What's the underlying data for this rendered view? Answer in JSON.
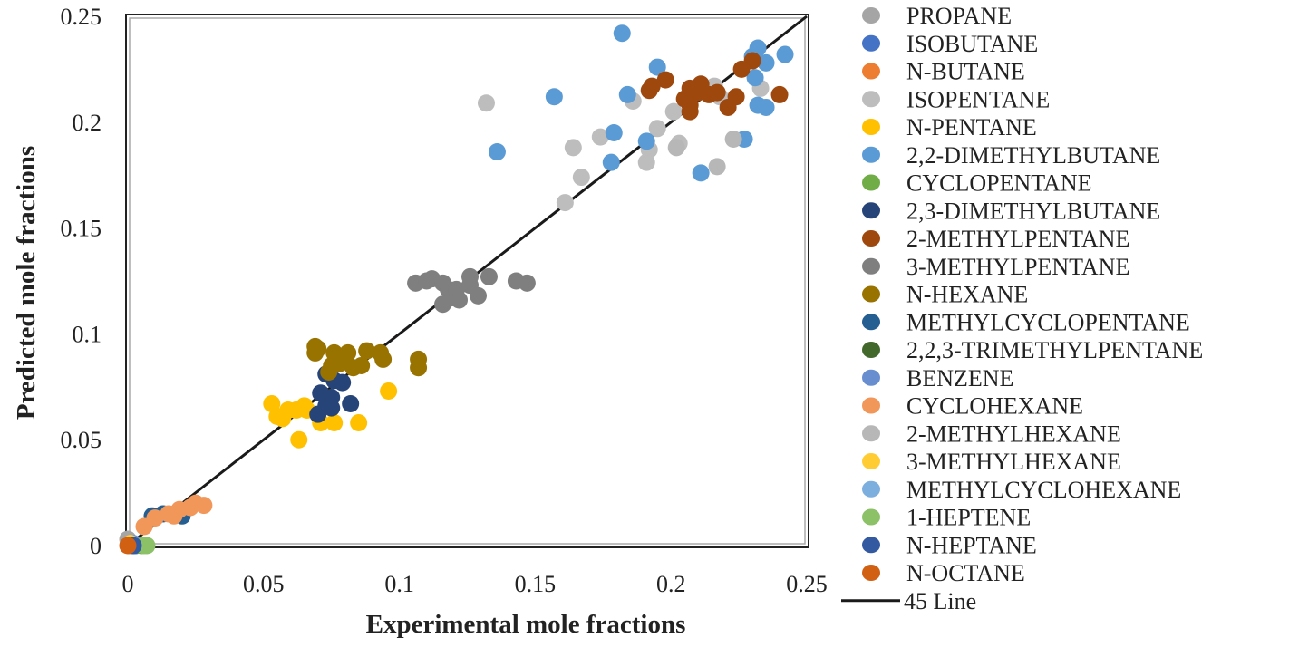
{
  "chart_data": {
    "type": "scatter",
    "xlabel": "Experimental mole fractions",
    "ylabel": "Predicted mole fractions",
    "xlim": [
      0,
      0.25
    ],
    "ylim": [
      0,
      0.25
    ],
    "xticks": [
      "0",
      "0.05",
      "0.1",
      "0.15",
      "0.2",
      "0.25"
    ],
    "yticks": [
      "0",
      "0.05",
      "0.1",
      "0.15",
      "0.2",
      "0.25"
    ],
    "xtick_values": [
      0,
      0.05,
      0.1,
      0.15,
      0.2,
      0.25
    ],
    "ytick_values": [
      0,
      0.05,
      0.1,
      0.15,
      0.2,
      0.25
    ],
    "grid": false,
    "legend_position": "right",
    "reference_line": {
      "name": "45 Line",
      "from": [
        0,
        0
      ],
      "to": [
        0.25,
        0.25
      ],
      "color": "#1a1a1a"
    },
    "series": [
      {
        "name": "PROPANE",
        "color": "#A5A5A5",
        "points": [
          [
            0.0,
            0.003
          ]
        ]
      },
      {
        "name": "ISOBUTANE",
        "color": "#4472C4",
        "points": [
          [
            0.003,
            0.0
          ]
        ]
      },
      {
        "name": "N-BUTANE",
        "color": "#ED7D31",
        "points": [
          [
            0.001,
            0.0
          ]
        ]
      },
      {
        "name": "ISOPENTANE",
        "color": "#BDBDBD",
        "points": [
          [
            0.132,
            0.209
          ],
          [
            0.164,
            0.188
          ],
          [
            0.174,
            0.193
          ],
          [
            0.167,
            0.174
          ],
          [
            0.161,
            0.162
          ],
          [
            0.186,
            0.21
          ],
          [
            0.195,
            0.197
          ],
          [
            0.192,
            0.187
          ],
          [
            0.191,
            0.181
          ],
          [
            0.203,
            0.19
          ],
          [
            0.201,
            0.205
          ],
          [
            0.216,
            0.217
          ],
          [
            0.218,
            0.212
          ],
          [
            0.233,
            0.216
          ]
        ]
      },
      {
        "name": "N-PENTANE",
        "color": "#FFC000",
        "points": [
          [
            0.053,
            0.067
          ],
          [
            0.055,
            0.061
          ],
          [
            0.059,
            0.064
          ],
          [
            0.062,
            0.064
          ],
          [
            0.065,
            0.066
          ],
          [
            0.066,
            0.064
          ],
          [
            0.063,
            0.05
          ],
          [
            0.071,
            0.058
          ],
          [
            0.076,
            0.058
          ],
          [
            0.085,
            0.058
          ],
          [
            0.096,
            0.073
          ],
          [
            0.057,
            0.06
          ]
        ]
      },
      {
        "name": "2,2-DIMETHYLBUTANE",
        "color": "#5B9BD5",
        "points": [
          [
            0.182,
            0.242
          ],
          [
            0.157,
            0.212
          ],
          [
            0.136,
            0.186
          ],
          [
            0.195,
            0.226
          ],
          [
            0.184,
            0.213
          ],
          [
            0.179,
            0.195
          ],
          [
            0.178,
            0.181
          ],
          [
            0.191,
            0.191
          ],
          [
            0.211,
            0.176
          ],
          [
            0.232,
            0.235
          ],
          [
            0.23,
            0.231
          ],
          [
            0.235,
            0.228
          ],
          [
            0.242,
            0.232
          ],
          [
            0.231,
            0.221
          ],
          [
            0.232,
            0.208
          ],
          [
            0.235,
            0.207
          ],
          [
            0.227,
            0.192
          ]
        ]
      },
      {
        "name": "CYCLOPENTANE",
        "color": "#70AD47",
        "points": [
          [
            0.005,
            0.0
          ]
        ]
      },
      {
        "name": "2,3-DIMETHYLBUTANE",
        "color": "#264478",
        "points": [
          [
            0.073,
            0.081
          ],
          [
            0.076,
            0.078
          ],
          [
            0.079,
            0.077
          ],
          [
            0.071,
            0.072
          ],
          [
            0.075,
            0.07
          ],
          [
            0.073,
            0.066
          ],
          [
            0.075,
            0.065
          ],
          [
            0.07,
            0.062
          ],
          [
            0.082,
            0.067
          ]
        ]
      },
      {
        "name": "2-METHYLPENTANE",
        "color": "#9E480E",
        "points": [
          [
            0.192,
            0.215
          ],
          [
            0.193,
            0.217
          ],
          [
            0.198,
            0.22
          ],
          [
            0.205,
            0.211
          ],
          [
            0.207,
            0.216
          ],
          [
            0.207,
            0.208
          ],
          [
            0.21,
            0.214
          ],
          [
            0.211,
            0.218
          ],
          [
            0.214,
            0.213
          ],
          [
            0.207,
            0.205
          ],
          [
            0.217,
            0.214
          ],
          [
            0.221,
            0.207
          ],
          [
            0.224,
            0.212
          ],
          [
            0.226,
            0.225
          ],
          [
            0.23,
            0.229
          ],
          [
            0.24,
            0.213
          ]
        ]
      },
      {
        "name": "3-METHYLPENTANE",
        "color": "#7F7F7F",
        "points": [
          [
            0.106,
            0.124
          ],
          [
            0.11,
            0.125
          ],
          [
            0.112,
            0.126
          ],
          [
            0.116,
            0.124
          ],
          [
            0.118,
            0.121
          ],
          [
            0.119,
            0.117
          ],
          [
            0.116,
            0.114
          ],
          [
            0.121,
            0.121
          ],
          [
            0.126,
            0.123
          ],
          [
            0.126,
            0.127
          ],
          [
            0.129,
            0.118
          ],
          [
            0.133,
            0.127
          ],
          [
            0.143,
            0.125
          ],
          [
            0.147,
            0.124
          ],
          [
            0.122,
            0.116
          ]
        ]
      },
      {
        "name": "N-HEXANE",
        "color": "#997300",
        "points": [
          [
            0.069,
            0.094
          ],
          [
            0.07,
            0.093
          ],
          [
            0.069,
            0.091
          ],
          [
            0.076,
            0.091
          ],
          [
            0.081,
            0.091
          ],
          [
            0.088,
            0.092
          ],
          [
            0.093,
            0.091
          ],
          [
            0.094,
            0.088
          ],
          [
            0.075,
            0.085
          ],
          [
            0.078,
            0.086
          ],
          [
            0.083,
            0.084
          ],
          [
            0.086,
            0.085
          ],
          [
            0.107,
            0.088
          ],
          [
            0.107,
            0.084
          ],
          [
            0.074,
            0.082
          ]
        ]
      },
      {
        "name": "METHYLCYCLOPENTANE",
        "color": "#255E91",
        "points": [
          [
            0.009,
            0.014
          ],
          [
            0.013,
            0.015
          ],
          [
            0.02,
            0.014
          ]
        ]
      },
      {
        "name": "2,2,3-TRIMETHYLPENTANE",
        "color": "#43682B",
        "points": [
          [
            0.002,
            0.0
          ]
        ]
      },
      {
        "name": "BENZENE",
        "color": "#698ED0",
        "points": [
          [
            0.002,
            0.001
          ]
        ]
      },
      {
        "name": "CYCLOHEXANE",
        "color": "#F1975A",
        "points": [
          [
            0.006,
            0.009
          ],
          [
            0.01,
            0.013
          ],
          [
            0.015,
            0.015
          ],
          [
            0.019,
            0.017
          ],
          [
            0.023,
            0.018
          ],
          [
            0.028,
            0.019
          ],
          [
            0.025,
            0.02
          ],
          [
            0.017,
            0.014
          ]
        ]
      },
      {
        "name": "2-METHYLHEXANE",
        "color": "#B7B7B7",
        "points": [
          [
            0.202,
            0.188
          ],
          [
            0.217,
            0.179
          ],
          [
            0.223,
            0.192
          ]
        ]
      },
      {
        "name": "3-METHYLHEXANE",
        "color": "#FFCD33",
        "points": [
          [
            0.001,
            0.001
          ]
        ]
      },
      {
        "name": "METHYLCYCLOHEXANE",
        "color": "#7CAFDD",
        "points": [
          [
            0.001,
            0.0
          ]
        ]
      },
      {
        "name": "1-HEPTENE",
        "color": "#8CC168",
        "points": [
          [
            0.006,
            0.0
          ],
          [
            0.007,
            0.0
          ]
        ]
      },
      {
        "name": "N-HEPTANE",
        "color": "#335AA1",
        "points": [
          [
            0.002,
            0.0
          ]
        ]
      },
      {
        "name": "N-OCTANE",
        "color": "#D26012",
        "points": [
          [
            0.0,
            0.0
          ]
        ]
      }
    ]
  }
}
